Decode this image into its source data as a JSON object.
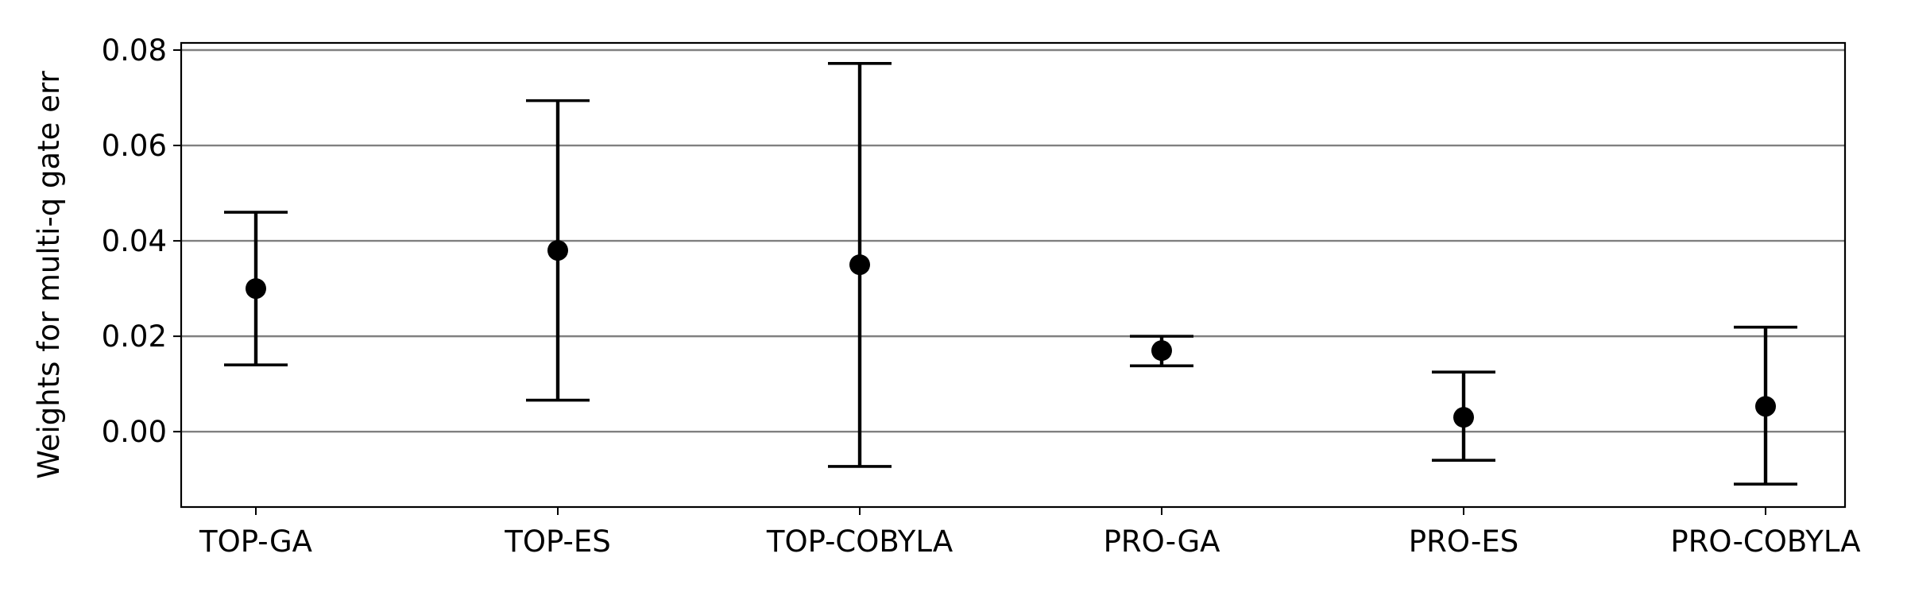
{
  "chart_data": {
    "type": "errorbar",
    "title": "",
    "xlabel": "",
    "ylabel": "Weights for multi-q gate err",
    "categories": [
      "TOP-GA",
      "TOP-ES",
      "TOP-COBYLA",
      "PRO-GA",
      "PRO-ES",
      "PRO-COBYLA"
    ],
    "values": [
      0.03,
      0.038,
      0.035,
      0.017,
      0.003,
      0.0053
    ],
    "lower": [
      0.014,
      0.0066,
      -0.0073,
      0.0138,
      -0.006,
      -0.011
    ],
    "upper": [
      0.046,
      0.0694,
      0.0772,
      0.02,
      0.0125,
      0.0219
    ],
    "ylim": [
      -0.0158,
      0.0815
    ],
    "yticks": [
      0.0,
      0.02,
      0.04,
      0.06,
      0.08
    ],
    "ytick_labels": [
      "0.00",
      "0.02",
      "0.04",
      "0.06",
      "0.08"
    ],
    "grid": "horizontal",
    "colors": {
      "marker": "#000000",
      "grid": "#808080",
      "axis": "#000000"
    }
  }
}
